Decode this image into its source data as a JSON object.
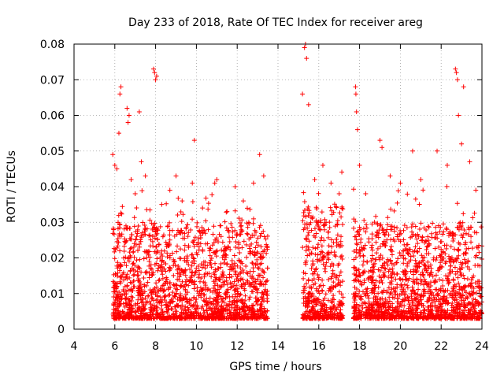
{
  "chart_data": {
    "type": "scatter",
    "title": "Day 233 of 2018, Rate Of TEC Index for receiver areg",
    "xlabel": "GPS time / hours",
    "ylabel": "ROTI / TECUs",
    "xlim": [
      4,
      24
    ],
    "ylim": [
      0,
      0.08
    ],
    "x_ticks": [
      4,
      6,
      8,
      10,
      12,
      14,
      16,
      18,
      20,
      22,
      24
    ],
    "y_ticks": [
      0,
      0.01,
      0.02,
      0.03,
      0.04,
      0.05,
      0.06,
      0.07,
      0.08
    ],
    "x_tick_labels": [
      "4",
      "6",
      "8",
      "10",
      "12",
      "14",
      "16",
      "18",
      "20",
      "22",
      "24"
    ],
    "y_tick_labels": [
      "0",
      "0.01",
      "0.02",
      "0.03",
      "0.04",
      "0.05",
      "0.06",
      "0.07",
      "0.08"
    ],
    "grid": true,
    "marker": "+",
    "marker_color": "#ff0000",
    "data_gap_hours": [
      13.5,
      15.2
    ],
    "series": [
      {
        "name": "ROTI",
        "color": "#ff0000",
        "points": [
          [
            5.9,
            0.049
          ],
          [
            6.0,
            0.046
          ],
          [
            6.1,
            0.045
          ],
          [
            6.2,
            0.055
          ],
          [
            6.3,
            0.068
          ],
          [
            6.25,
            0.066
          ],
          [
            6.6,
            0.062
          ],
          [
            6.7,
            0.06
          ],
          [
            6.65,
            0.058
          ],
          [
            6.8,
            0.042
          ],
          [
            7.0,
            0.038
          ],
          [
            7.2,
            0.061
          ],
          [
            7.3,
            0.047
          ],
          [
            7.5,
            0.043
          ],
          [
            7.9,
            0.073
          ],
          [
            7.95,
            0.072
          ],
          [
            8.0,
            0.07
          ],
          [
            8.05,
            0.071
          ],
          [
            8.3,
            0.035
          ],
          [
            8.7,
            0.039
          ],
          [
            9.0,
            0.043
          ],
          [
            9.3,
            0.036
          ],
          [
            9.8,
            0.041
          ],
          [
            9.9,
            0.053
          ],
          [
            10.3,
            0.034
          ],
          [
            10.9,
            0.041
          ],
          [
            11.0,
            0.042
          ],
          [
            11.5,
            0.033
          ],
          [
            11.9,
            0.04
          ],
          [
            12.3,
            0.036
          ],
          [
            12.8,
            0.041
          ],
          [
            13.1,
            0.049
          ],
          [
            13.3,
            0.043
          ],
          [
            15.3,
            0.079
          ],
          [
            15.35,
            0.08
          ],
          [
            15.4,
            0.076
          ],
          [
            15.5,
            0.063
          ],
          [
            15.2,
            0.066
          ],
          [
            15.8,
            0.042
          ],
          [
            16.2,
            0.046
          ],
          [
            16.6,
            0.041
          ],
          [
            17.0,
            0.038
          ],
          [
            17.8,
            0.068
          ],
          [
            17.82,
            0.066
          ],
          [
            17.85,
            0.061
          ],
          [
            17.9,
            0.056
          ],
          [
            18.0,
            0.046
          ],
          [
            18.3,
            0.038
          ],
          [
            19.0,
            0.053
          ],
          [
            19.1,
            0.051
          ],
          [
            19.5,
            0.043
          ],
          [
            20.0,
            0.041
          ],
          [
            20.6,
            0.05
          ],
          [
            21.0,
            0.042
          ],
          [
            21.8,
            0.05
          ],
          [
            22.3,
            0.046
          ],
          [
            22.7,
            0.073
          ],
          [
            22.75,
            0.072
          ],
          [
            22.8,
            0.07
          ],
          [
            22.85,
            0.06
          ],
          [
            23.0,
            0.052
          ],
          [
            23.1,
            0.068
          ],
          [
            23.4,
            0.047
          ],
          [
            23.7,
            0.039
          ]
        ],
        "dense_bands": [
          {
            "x_range": [
              5.9,
              13.5
            ],
            "y_range": [
              0.003,
              0.03
            ]
          },
          {
            "x_range": [
              15.2,
              17.2
            ],
            "y_range": [
              0.003,
              0.035
            ]
          },
          {
            "x_range": [
              17.7,
              24.0
            ],
            "y_range": [
              0.003,
              0.03
            ]
          }
        ]
      }
    ]
  }
}
